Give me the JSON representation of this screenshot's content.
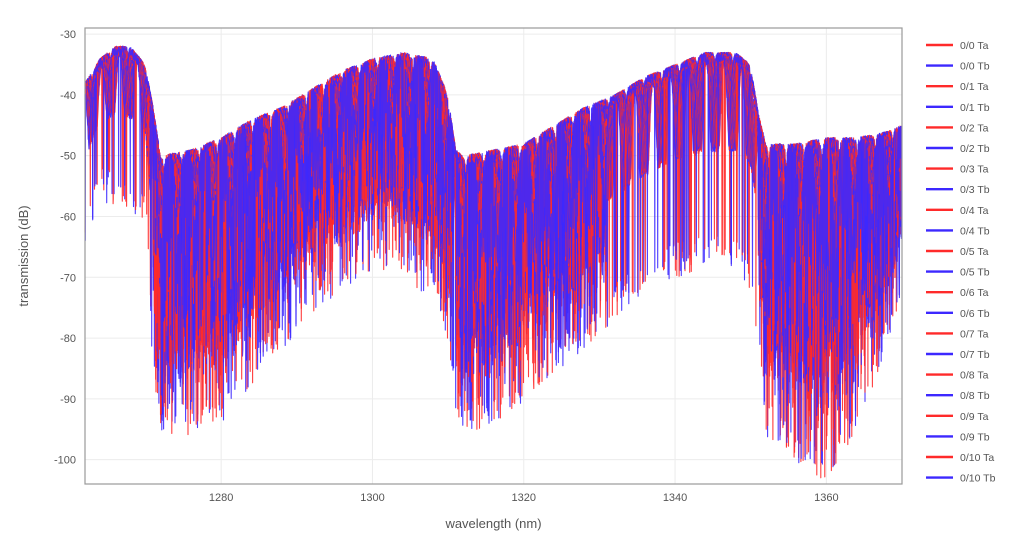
{
  "chart_data": {
    "type": "line",
    "title": "",
    "xlabel": "wavelength (nm)",
    "ylabel": "transmission (dB)",
    "xlim": [
      1262,
      1370
    ],
    "ylim": [
      -104,
      -29
    ],
    "xticks": [
      1280,
      1300,
      1320,
      1340,
      1360
    ],
    "yticks": [
      -30,
      -40,
      -50,
      -60,
      -70,
      -80,
      -90,
      -100
    ],
    "grid": true,
    "legend_position": "right",
    "colors": {
      "Ta": "#ff2a2a",
      "Tb": "#3c28ff"
    },
    "series": [
      {
        "name": "0/0 Ta",
        "port": "Ta"
      },
      {
        "name": "0/0 Tb",
        "port": "Tb"
      },
      {
        "name": "0/1 Ta",
        "port": "Ta"
      },
      {
        "name": "0/1 Tb",
        "port": "Tb"
      },
      {
        "name": "0/2 Ta",
        "port": "Ta"
      },
      {
        "name": "0/2 Tb",
        "port": "Tb"
      },
      {
        "name": "0/3 Ta",
        "port": "Ta"
      },
      {
        "name": "0/3 Tb",
        "port": "Tb"
      },
      {
        "name": "0/4 Ta",
        "port": "Ta"
      },
      {
        "name": "0/4 Tb",
        "port": "Tb"
      },
      {
        "name": "0/5 Ta",
        "port": "Ta"
      },
      {
        "name": "0/5 Tb",
        "port": "Tb"
      },
      {
        "name": "0/6 Ta",
        "port": "Ta"
      },
      {
        "name": "0/6 Tb",
        "port": "Tb"
      },
      {
        "name": "0/7 Ta",
        "port": "Ta"
      },
      {
        "name": "0/7 Tb",
        "port": "Tb"
      },
      {
        "name": "0/8 Ta",
        "port": "Ta"
      },
      {
        "name": "0/8 Tb",
        "port": "Tb"
      },
      {
        "name": "0/9 Ta",
        "port": "Ta"
      },
      {
        "name": "0/9 Tb",
        "port": "Tb"
      },
      {
        "name": "0/10 Ta",
        "port": "Ta"
      },
      {
        "name": "0/10 Tb",
        "port": "Tb"
      }
    ],
    "envelope": {
      "description": "approximate transmission envelope shared by all traces",
      "wavelength_nm": [
        1262,
        1264,
        1266,
        1268,
        1270,
        1271,
        1272,
        1276,
        1280,
        1284,
        1288,
        1292,
        1296,
        1300,
        1304,
        1308,
        1310,
        1311,
        1312,
        1316,
        1320,
        1324,
        1328,
        1332,
        1336,
        1340,
        1344,
        1348,
        1350,
        1351,
        1352,
        1356,
        1360,
        1364,
        1368,
        1370
      ],
      "upper_dB": [
        -38,
        -34,
        -32,
        -32,
        -35,
        -42,
        -50,
        -49,
        -47,
        -44,
        -42,
        -39,
        -36,
        -34,
        -33,
        -34,
        -40,
        -49,
        -50,
        -49,
        -48,
        -45,
        -42,
        -40,
        -37,
        -35,
        -33,
        -33,
        -35,
        -43,
        -48,
        -48,
        -47,
        -47,
        -46,
        -45
      ],
      "lower_dB": [
        -60,
        -52,
        -52,
        -53,
        -55,
        -80,
        -90,
        -90,
        -88,
        -82,
        -76,
        -70,
        -66,
        -63,
        -64,
        -68,
        -75,
        -86,
        -90,
        -88,
        -85,
        -80,
        -76,
        -71,
        -67,
        -64,
        -63,
        -63,
        -66,
        -75,
        -90,
        -95,
        -98,
        -90,
        -75,
        -67
      ]
    }
  }
}
